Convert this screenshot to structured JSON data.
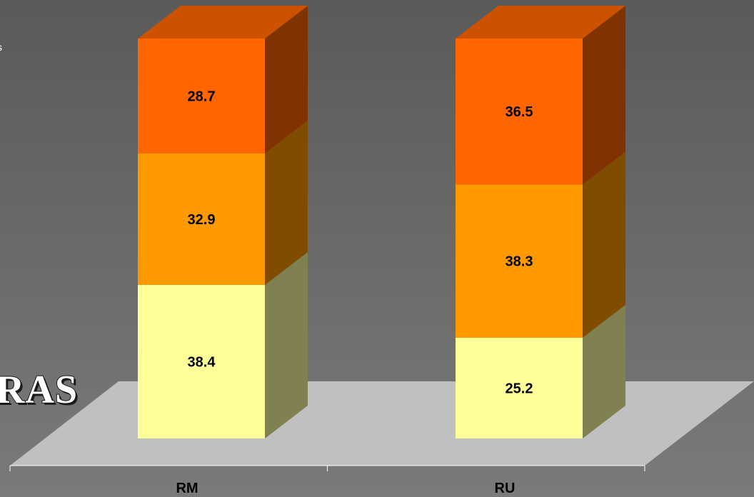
{
  "fragments": {
    "left_big_text": "RAS",
    "left_small_text": "s"
  },
  "chart_data": {
    "type": "bar",
    "stacked": true,
    "three_d": true,
    "categories": [
      "RM",
      "RU"
    ],
    "series": [
      {
        "color": "#ffff99",
        "side_color": "#808050",
        "values": [
          38.4,
          25.2
        ]
      },
      {
        "color": "#ff9900",
        "side_color": "#804c00",
        "values": [
          32.9,
          38.3
        ]
      },
      {
        "color": "#ff6600",
        "side_color": "#803300",
        "top_color": "#cc5200",
        "values": [
          28.7,
          36.5
        ]
      }
    ],
    "ylim": [
      0,
      100
    ],
    "floor_color": "#c0c0c0",
    "axis_color": "#ffffff",
    "label_color": "#000000",
    "category_label_color": "#000000",
    "grid": false,
    "legend": "none"
  }
}
